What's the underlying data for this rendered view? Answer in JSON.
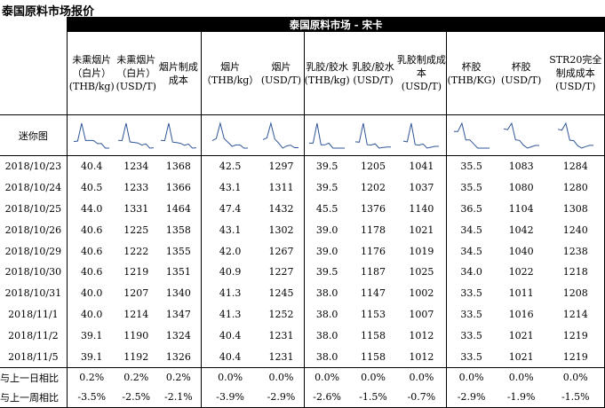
{
  "title": "泰国原料市场报价",
  "banner": "泰国原料市场 - 宋卡",
  "columns": [
    "未熏烟片（白片）(THB/kg)",
    "未熏烟片（白片）(USD/T)",
    "烟片制成成本",
    "烟片（THB/kg）",
    "烟片(USD/T)",
    "乳胶/胶水(THB/kg)",
    "乳胶/胶水(USD/T)",
    "乳胶制成成本(USD/T)",
    "杯胶(THB/KG)",
    "杯胶(USD/T)",
    "STR20完全制成成本(USD/T)"
  ],
  "sparkline_label": "迷你图",
  "rows": [
    {
      "date": "2018/10/23",
      "values": [
        "40.4",
        "1234",
        "1368",
        "42.5",
        "1297",
        "39.5",
        "1205",
        "1041",
        "35.5",
        "1083",
        "1284"
      ]
    },
    {
      "date": "2018/10/24",
      "values": [
        "40.5",
        "1233",
        "1366",
        "43.1",
        "1311",
        "39.5",
        "1202",
        "1037",
        "35.5",
        "1080",
        "1280"
      ]
    },
    {
      "date": "2018/10/25",
      "values": [
        "44.0",
        "1331",
        "1464",
        "47.4",
        "1432",
        "45.5",
        "1376",
        "1140",
        "36.5",
        "1104",
        "1308"
      ]
    },
    {
      "date": "2018/10/26",
      "values": [
        "40.6",
        "1225",
        "1358",
        "43.1",
        "1302",
        "39.0",
        "1178",
        "1021",
        "34.5",
        "1042",
        "1240"
      ]
    },
    {
      "date": "2018/10/29",
      "values": [
        "40.6",
        "1222",
        "1355",
        "42.0",
        "1267",
        "39.0",
        "1176",
        "1019",
        "34.5",
        "1040",
        "1238"
      ]
    },
    {
      "date": "2018/10/30",
      "values": [
        "40.6",
        "1219",
        "1351",
        "40.9",
        "1227",
        "39.5",
        "1187",
        "1025",
        "34.0",
        "1022",
        "1218"
      ]
    },
    {
      "date": "2018/10/31",
      "values": [
        "40.0",
        "1207",
        "1340",
        "41.3",
        "1245",
        "38.0",
        "1147",
        "1002",
        "33.5",
        "1011",
        "1208"
      ]
    },
    {
      "date": "2018/11/1",
      "values": [
        "40.0",
        "1214",
        "1347",
        "41.3",
        "1252",
        "38.0",
        "1153",
        "1007",
        "33.5",
        "1016",
        "1214"
      ]
    },
    {
      "date": "2018/11/2",
      "values": [
        "39.1",
        "1190",
        "1324",
        "40.4",
        "1231",
        "38.0",
        "1158",
        "1012",
        "33.5",
        "1021",
        "1219"
      ]
    },
    {
      "date": "2018/11/5",
      "values": [
        "39.1",
        "1192",
        "1326",
        "40.4",
        "1231",
        "38.0",
        "1158",
        "1012",
        "33.5",
        "1021",
        "1219"
      ]
    }
  ],
  "changes": [
    {
      "label": "与上一日相比",
      "values": [
        "0.2%",
        "0.2%",
        "0.2%",
        "0.0%",
        "0.0%",
        "0.0%",
        "0.0%",
        "0.0%",
        "0.0%",
        "0.0%",
        "0.0%"
      ]
    },
    {
      "label": "与上一周相比",
      "values": [
        "-3.5%",
        "-2.5%",
        "-2.1%",
        "-3.9%",
        "-2.9%",
        "-2.6%",
        "-1.5%",
        "-0.7%",
        "-2.9%",
        "-1.9%",
        "-1.5%"
      ]
    }
  ]
}
